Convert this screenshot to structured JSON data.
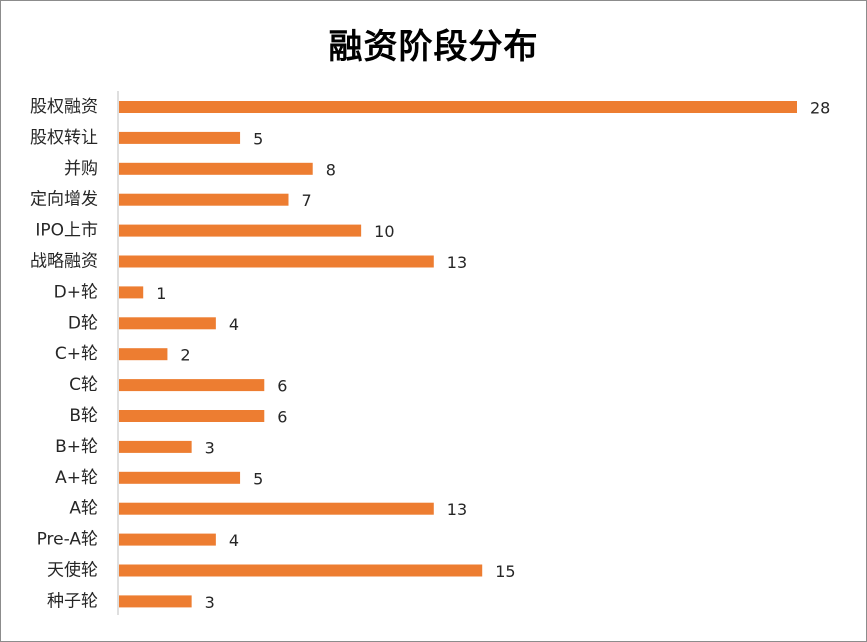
{
  "chart_data": {
    "type": "bar",
    "orientation": "horizontal",
    "title": "融资阶段分布",
    "xlabel": "",
    "ylabel": "",
    "categories": [
      "股权融资",
      "股权转让",
      "并购",
      "定向增发",
      "IPO上市",
      "战略融资",
      "D+轮",
      "D轮",
      "C+轮",
      "C轮",
      "B轮",
      "B+轮",
      "A+轮",
      "A轮",
      "Pre-A轮",
      "天使轮",
      "种子轮"
    ],
    "values": [
      28,
      5,
      8,
      7,
      10,
      13,
      1,
      4,
      2,
      6,
      6,
      3,
      5,
      13,
      4,
      15,
      3
    ],
    "xlim": [
      0,
      28
    ],
    "grid": false,
    "legend": "none",
    "data_labels": true,
    "bar_color": "#ED7D31",
    "axis_color": "#BFBFBF"
  }
}
